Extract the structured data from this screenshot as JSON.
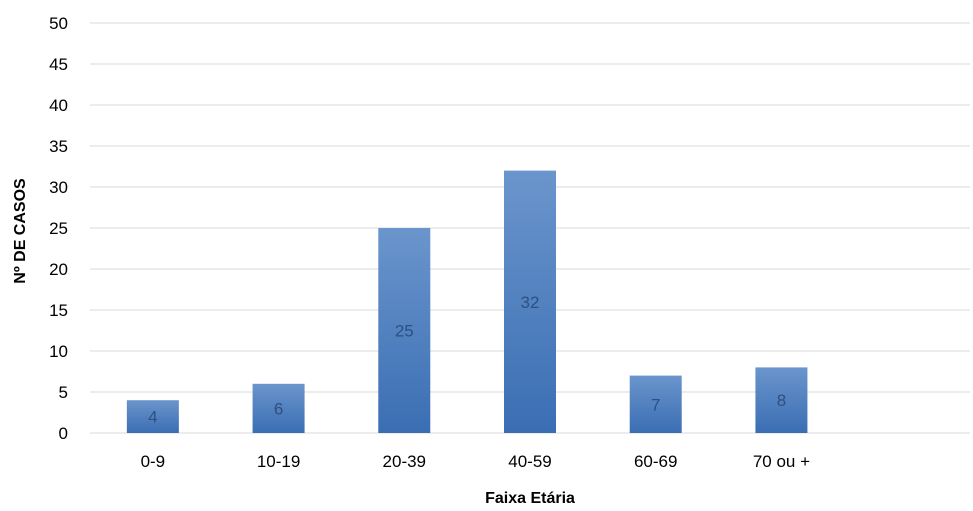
{
  "chart_data": {
    "type": "bar",
    "title": "",
    "xlabel": "Faixa Etária",
    "ylabel": "Nº DE CASOS",
    "categories": [
      "0-9",
      "10-19",
      "20-39",
      "40-59",
      "60-69",
      "70 ou +"
    ],
    "values": [
      4,
      6,
      25,
      32,
      7,
      8
    ],
    "data_labels": [
      "4",
      "6",
      "25",
      "32",
      "7",
      "8"
    ],
    "ylim": [
      0,
      50
    ],
    "yticks": [
      "0",
      "5",
      "10",
      "15",
      "20",
      "25",
      "30",
      "35",
      "40",
      "45",
      "50"
    ],
    "grid": true,
    "legend": "none",
    "colors": {
      "bar_top": "#6b95cc",
      "bar_bottom": "#3a6eb3",
      "gridline": "#d9d9d9",
      "data_label": "#2f4f7f"
    }
  }
}
